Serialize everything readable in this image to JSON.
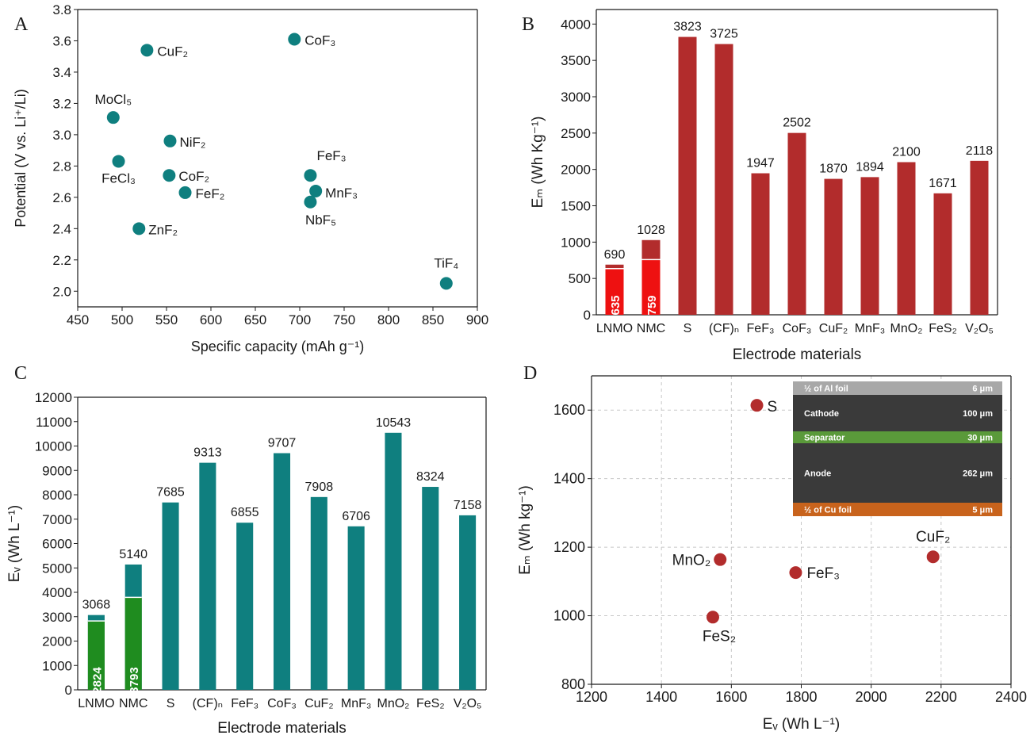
{
  "colors": {
    "teal": "#0f7f7f",
    "dark_red": "#b22c2c",
    "bright_red": "#ee1111",
    "green": "#1f8c1f",
    "axis": "#1a1a1a",
    "grid": "#c8c8c8",
    "inset_al": "#a8a8a8",
    "inset_cathode": "#3a3a3a",
    "inset_separator": "#5a9a3a",
    "inset_anode": "#3a3a3a",
    "inset_cu": "#c8631c"
  },
  "panel_letters": {
    "a": "A",
    "b": "B",
    "c": "C",
    "d": "D"
  },
  "chart_data": [
    {
      "panel": "A",
      "type": "scatter",
      "xlabel": "Specific capacity (mAh g⁻¹)",
      "ylabel": "Potential (V vs. Li⁺/Li)",
      "xlim": [
        450,
        900
      ],
      "ylim": [
        1.9,
        3.8
      ],
      "xticks": [
        450,
        500,
        550,
        600,
        650,
        700,
        750,
        800,
        850,
        900
      ],
      "yticks": [
        2.0,
        2.2,
        2.4,
        2.6,
        2.8,
        3.0,
        3.2,
        3.4,
        3.6,
        3.8
      ],
      "grid": false,
      "points": [
        {
          "label": "CuF₂",
          "x": 528,
          "y": 3.54
        },
        {
          "label": "CoF₃",
          "x": 694,
          "y": 3.61
        },
        {
          "label": "MoCl₅",
          "x": 490,
          "y": 3.11
        },
        {
          "label": "NiF₂",
          "x": 554,
          "y": 2.96
        },
        {
          "label": "FeCl₃",
          "x": 496,
          "y": 2.83
        },
        {
          "label": "CoF₂",
          "x": 553,
          "y": 2.74
        },
        {
          "label": "FeF₂",
          "x": 571,
          "y": 2.63
        },
        {
          "label": "ZnF₂",
          "x": 519,
          "y": 2.4
        },
        {
          "label": "FeF₃",
          "x": 712,
          "y": 2.74
        },
        {
          "label": "MnF₃",
          "x": 718,
          "y": 2.64
        },
        {
          "label": "NbF₅",
          "x": 712,
          "y": 2.57
        },
        {
          "label": "TiF₄",
          "x": 865,
          "y": 2.05
        }
      ]
    },
    {
      "panel": "B",
      "type": "bar",
      "xlabel": "Electrode materials",
      "ylabel": "Eₘ (Wh Kg⁻¹)",
      "ylim": [
        0,
        4200
      ],
      "yticks": [
        0,
        500,
        1000,
        1500,
        2000,
        2500,
        3000,
        3500,
        4000
      ],
      "categories": [
        "LNMO",
        "NMC",
        "S",
        "(CF)ₙ",
        "FeF₃",
        "CoF₃",
        "CuF₂",
        "MnF₃",
        "MnO₂",
        "FeS₂",
        "V₂O₅"
      ],
      "values": [
        690,
        1028,
        3823,
        3725,
        1947,
        2502,
        1870,
        1894,
        2100,
        1671,
        2118
      ],
      "inner_values": [
        635,
        759,
        null,
        null,
        null,
        null,
        null,
        null,
        null,
        null,
        null
      ]
    },
    {
      "panel": "C",
      "type": "bar",
      "xlabel": "Electrode materials",
      "ylabel": "Eᵥ (Wh L⁻¹)",
      "ylim": [
        0,
        12000
      ],
      "yticks": [
        0,
        1000,
        2000,
        3000,
        4000,
        5000,
        6000,
        7000,
        8000,
        9000,
        10000,
        11000,
        12000
      ],
      "categories": [
        "LNMO",
        "NMC",
        "S",
        "(CF)ₙ",
        "FeF₃",
        "CoF₃",
        "CuF₂",
        "MnF₃",
        "MnO₂",
        "FeS₂",
        "V₂O₅"
      ],
      "values": [
        3068,
        5140,
        7685,
        9313,
        6855,
        9707,
        7908,
        6706,
        10543,
        8324,
        7158
      ],
      "inner_values": [
        2824,
        3793,
        null,
        null,
        null,
        null,
        null,
        null,
        null,
        null,
        null
      ]
    },
    {
      "panel": "D",
      "type": "scatter",
      "xlabel": "Eᵥ (Wh L⁻¹)",
      "ylabel": "Eₘ (Wh kg⁻¹)",
      "xlim": [
        1200,
        2400
      ],
      "ylim": [
        800,
        1700
      ],
      "xticks": [
        1200,
        1400,
        1600,
        1800,
        2000,
        2200,
        2400
      ],
      "yticks": [
        800,
        1000,
        1200,
        1400,
        1600
      ],
      "grid": true,
      "points": [
        {
          "label": "S",
          "x": 1673,
          "y": 1614
        },
        {
          "label": "MnO₂",
          "x": 1568,
          "y": 1164
        },
        {
          "label": "FeF₃",
          "x": 1784,
          "y": 1126
        },
        {
          "label": "FeS₂",
          "x": 1547,
          "y": 996
        },
        {
          "label": "CuF₂",
          "x": 2177,
          "y": 1172
        }
      ],
      "inset_layers": [
        {
          "name": "½ of Al foil",
          "thickness": "6 μm"
        },
        {
          "name": "Cathode",
          "thickness": "100 μm"
        },
        {
          "name": "Separator",
          "thickness": "30 μm"
        },
        {
          "name": "Anode",
          "thickness": "262 μm"
        },
        {
          "name": "½ of Cu foil",
          "thickness": "5 μm"
        }
      ]
    }
  ]
}
